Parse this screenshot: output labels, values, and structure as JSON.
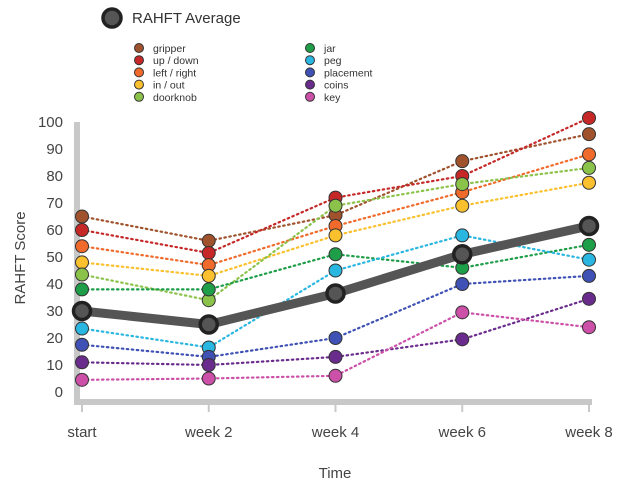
{
  "chart_data": {
    "type": "line",
    "ylabel": "RAHFT Score",
    "xlabel": "Time",
    "categories": [
      "start",
      "week 2",
      "week 4",
      "week 6",
      "week 8"
    ],
    "ylim": [
      0,
      100
    ],
    "yticks": [
      0,
      10,
      20,
      30,
      40,
      50,
      60,
      70,
      80,
      90,
      100
    ],
    "average": {
      "name": "RAHFT Average",
      "color": "#555555",
      "values": [
        30,
        25,
        36.5,
        51,
        61.5
      ]
    },
    "series": [
      {
        "name": "gripper",
        "color": "#a0522d",
        "values": [
          65,
          56,
          65.5,
          85.5,
          95.5
        ]
      },
      {
        "name": "up / down",
        "color": "#c62828",
        "values": [
          60,
          51.5,
          72,
          80,
          101.5
        ]
      },
      {
        "name": "left / right",
        "color": "#f06a2c",
        "values": [
          54,
          47,
          61.5,
          74,
          88
        ]
      },
      {
        "name": "in / out",
        "color": "#fbc02d",
        "values": [
          48,
          43,
          58,
          69,
          77.5
        ]
      },
      {
        "name": "doorknob",
        "color": "#8bc34a",
        "values": [
          43.5,
          34,
          69,
          77,
          83
        ]
      },
      {
        "name": "jar",
        "color": "#1e9e48",
        "values": [
          38,
          38,
          51,
          46,
          54.5
        ]
      },
      {
        "name": "peg",
        "color": "#29b6e0",
        "values": [
          23.5,
          16.5,
          45,
          58,
          49
        ]
      },
      {
        "name": "placement",
        "color": "#3f51b5",
        "values": [
          17.5,
          13,
          20,
          40,
          43
        ]
      },
      {
        "name": "coins",
        "color": "#6a2c8c",
        "values": [
          11,
          10,
          13,
          19.5,
          34.5
        ]
      },
      {
        "name": "key",
        "color": "#cc4fa8",
        "values": [
          4.5,
          5,
          6,
          29.5,
          24
        ]
      }
    ]
  }
}
